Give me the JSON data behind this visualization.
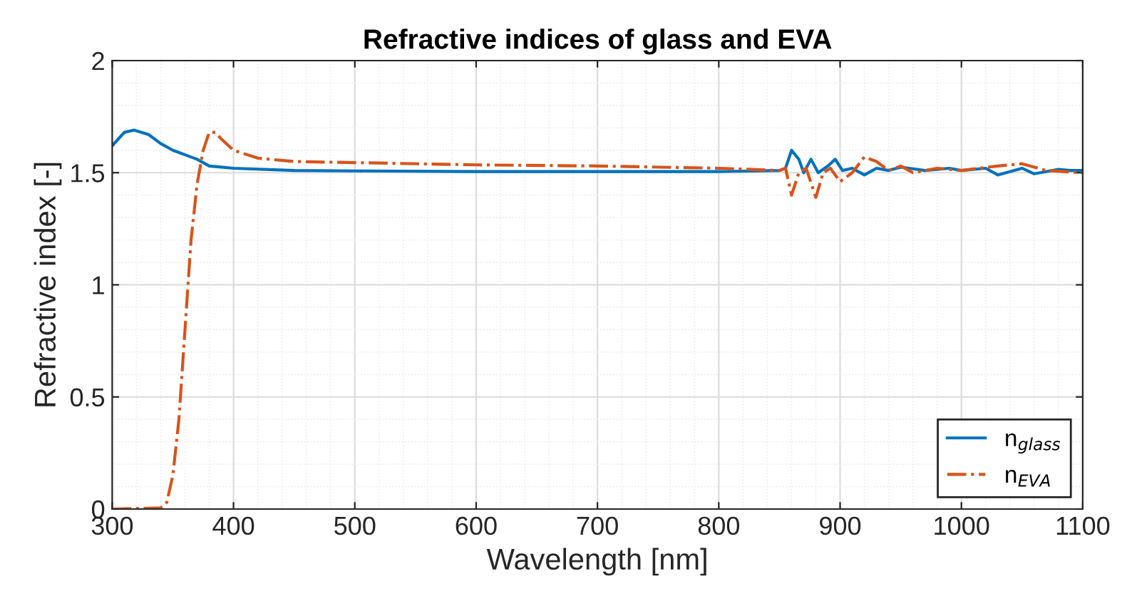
{
  "chart_data": {
    "type": "line",
    "title": "Refractive indices of glass and EVA",
    "xlabel": "Wavelength [nm]",
    "ylabel": "Refractive index [-]",
    "xlim": [
      300,
      1100
    ],
    "xticks": [
      300,
      400,
      500,
      600,
      700,
      800,
      900,
      1000,
      1100
    ],
    "ylim": [
      0,
      2
    ],
    "yticks": [
      0,
      0.5,
      1,
      1.5,
      2
    ],
    "grid": true,
    "legend": "bottom right",
    "marker": "none",
    "series": [
      {
        "name": "n$_{glass}$",
        "color": "#0072bd",
        "line_style": "solid",
        "x": [
          300,
          310,
          318,
          330,
          340,
          350,
          360,
          370,
          380,
          390,
          400,
          450,
          500,
          600,
          700,
          800,
          850,
          855,
          860,
          866,
          870,
          876,
          882,
          890,
          896,
          902,
          910,
          920,
          930,
          940,
          950,
          970,
          990,
          1000,
          1020,
          1030,
          1050,
          1060,
          1080,
          1090,
          1100
        ],
        "values": [
          1.62,
          1.68,
          1.69,
          1.67,
          1.63,
          1.6,
          1.58,
          1.56,
          1.53,
          1.525,
          1.52,
          1.51,
          1.508,
          1.505,
          1.505,
          1.505,
          1.51,
          1.52,
          1.6,
          1.56,
          1.5,
          1.56,
          1.5,
          1.53,
          1.56,
          1.51,
          1.52,
          1.49,
          1.52,
          1.51,
          1.525,
          1.51,
          1.52,
          1.51,
          1.52,
          1.49,
          1.52,
          1.495,
          1.515,
          1.51,
          1.51
        ]
      },
      {
        "name": "n$_{EVA}$",
        "color": "#d95319",
        "line_style": "dashed",
        "x": [
          300,
          340,
          345,
          350,
          355,
          360,
          365,
          370,
          375,
          380,
          385,
          390,
          400,
          420,
          450,
          500,
          600,
          700,
          800,
          850,
          855,
          860,
          866,
          872,
          880,
          886,
          892,
          900,
          910,
          920,
          930,
          940,
          950,
          960,
          980,
          1000,
          1030,
          1050,
          1070,
          1100
        ],
        "values": [
          0,
          0.005,
          0.03,
          0.15,
          0.4,
          0.8,
          1.2,
          1.45,
          1.6,
          1.68,
          1.68,
          1.65,
          1.6,
          1.565,
          1.55,
          1.545,
          1.535,
          1.53,
          1.52,
          1.51,
          1.52,
          1.4,
          1.5,
          1.52,
          1.39,
          1.5,
          1.52,
          1.46,
          1.5,
          1.57,
          1.55,
          1.51,
          1.53,
          1.5,
          1.52,
          1.51,
          1.53,
          1.54,
          1.51,
          1.5
        ]
      }
    ]
  }
}
